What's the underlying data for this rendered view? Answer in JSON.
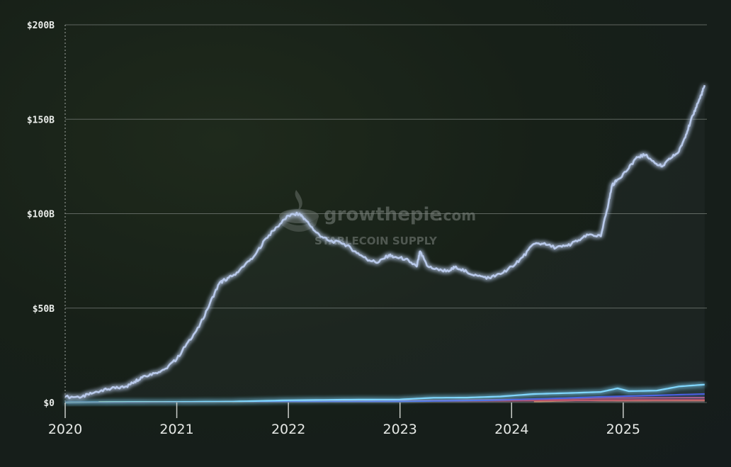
{
  "watermark": {
    "brand": "growthepie",
    "brand_suffix": ".com",
    "subtitle": "STABLECOIN SUPPLY"
  },
  "chart_data": {
    "type": "area",
    "title": "",
    "xlabel": "",
    "ylabel": "",
    "ylim": [
      0,
      200
    ],
    "y_unit": "B USD",
    "xlim": [
      2020.0,
      2025.75
    ],
    "grid": true,
    "legend": "none",
    "y_ticks": [
      {
        "value": 0,
        "label": "$0"
      },
      {
        "value": 50,
        "label": "$50B"
      },
      {
        "value": 100,
        "label": "$100B"
      },
      {
        "value": 150,
        "label": "$150B"
      },
      {
        "value": 200,
        "label": "$200B"
      }
    ],
    "x_ticks": [
      {
        "value": 2020,
        "label": "2020"
      },
      {
        "value": 2021,
        "label": "2021"
      },
      {
        "value": 2022,
        "label": "2022"
      },
      {
        "value": 2023,
        "label": "2023"
      },
      {
        "value": 2024,
        "label": "2024"
      },
      {
        "value": 2025,
        "label": "2025"
      }
    ],
    "series": [
      {
        "color": "#b8c9ea",
        "glow": true,
        "x": [
          2020.0,
          2020.15,
          2020.25,
          2020.35,
          2020.45,
          2020.55,
          2020.62,
          2020.7,
          2020.8,
          2020.9,
          2021.0,
          2021.1,
          2021.2,
          2021.3,
          2021.38,
          2021.43,
          2021.5,
          2021.6,
          2021.7,
          2021.8,
          2021.9,
          2022.0,
          2022.1,
          2022.15,
          2022.25,
          2022.35,
          2022.5,
          2022.6,
          2022.7,
          2022.8,
          2022.9,
          2022.95,
          2023.05,
          2023.15,
          2023.18,
          2023.25,
          2023.35,
          2023.45,
          2023.5,
          2023.6,
          2023.7,
          2023.8,
          2023.9,
          2024.0,
          2024.1,
          2024.2,
          2024.28,
          2024.4,
          2024.5,
          2024.6,
          2024.7,
          2024.8,
          2024.87,
          2024.9,
          2024.95,
          2025.05,
          2025.12,
          2025.2,
          2025.28,
          2025.35,
          2025.42,
          2025.5,
          2025.55,
          2025.6,
          2025.65,
          2025.7,
          2025.73
        ],
        "values": [
          3,
          3,
          5,
          7,
          7.5,
          8.5,
          11,
          14,
          15.5,
          18,
          23,
          32,
          40,
          53,
          63,
          65,
          67,
          72,
          78,
          87,
          93,
          99,
          100,
          97,
          90,
          86,
          84,
          80,
          76,
          74,
          78,
          77,
          76,
          72,
          80,
          72,
          70,
          70,
          72,
          69,
          67,
          66,
          68,
          72,
          77,
          84,
          84,
          82,
          83,
          86,
          89,
          88,
          106,
          115,
          118,
          124,
          130,
          131,
          127,
          125,
          129,
          133,
          140,
          148,
          156,
          163,
          168
        ]
      },
      {
        "color": "#7fd8ff",
        "glow": true,
        "x": [
          2020.0,
          2020.5,
          2021.0,
          2021.5,
          2022.0,
          2022.5,
          2023.0,
          2023.3,
          2023.6,
          2023.9,
          2024.2,
          2024.5,
          2024.8,
          2024.95,
          2025.05,
          2025.3,
          2025.5,
          2025.73
        ],
        "values": [
          0,
          0.2,
          0.3,
          0.5,
          1.2,
          1.5,
          1.6,
          2.5,
          2.6,
          3.2,
          4.5,
          5,
          5.6,
          7.5,
          6,
          6.3,
          8.5,
          9.5
        ]
      },
      {
        "color": "#3f4bdb",
        "glow": false,
        "x": [
          2020.0,
          2022.0,
          2023.0,
          2023.8,
          2024.3,
          2024.8,
          2025.3,
          2025.73
        ],
        "values": [
          0,
          0.3,
          0.6,
          1.2,
          2.0,
          3.0,
          3.8,
          4.5
        ]
      },
      {
        "color": "#b84a6a",
        "glow": false,
        "x": [
          2020.0,
          2021.5,
          2022.6,
          2023.0,
          2024.3,
          2024.8,
          2025.73
        ],
        "values": [
          0,
          0.4,
          0.9,
          0.8,
          1.8,
          2.4,
          2.6
        ]
      },
      {
        "color": "#e03b3b",
        "glow": false,
        "x": [
          2021.5,
          2022.3,
          2022.8,
          2023.5,
          2024.0,
          2024.8,
          2025.73
        ],
        "values": [
          0.2,
          0.6,
          1.0,
          0.9,
          1.0,
          1.3,
          1.4
        ]
      },
      {
        "color": "#f0a43a",
        "glow": false,
        "x": [
          2024.2,
          2024.6,
          2025.0,
          2025.73
        ],
        "values": [
          0.5,
          1.2,
          1.0,
          1.1
        ]
      },
      {
        "color": "#d6d34a",
        "glow": false,
        "x": [
          2020.3,
          2021.0,
          2021.5
        ],
        "values": [
          0.3,
          0.35,
          0.3
        ]
      }
    ]
  }
}
